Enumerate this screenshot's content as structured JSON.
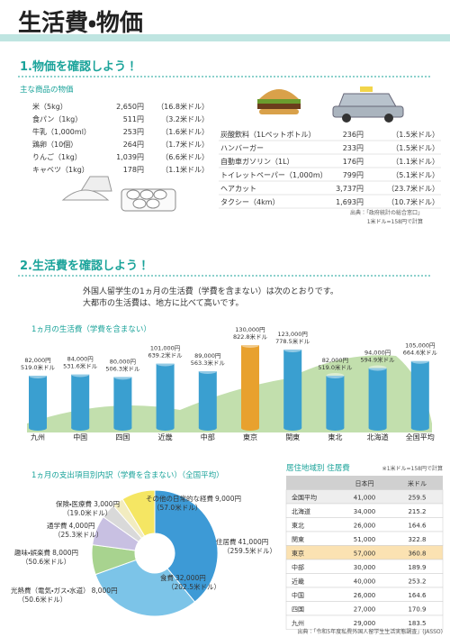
{
  "header": {
    "title": "生活費・物価"
  },
  "section1": {
    "title": "1.物価を確認しよう！",
    "subtitle": "主な商品の物価",
    "items_left": [
      [
        "米（5kg）",
        "2,650円",
        "（16.8米ドル）"
      ],
      [
        "食パン（1kg）",
        "511円",
        "（3.2米ドル）"
      ],
      [
        "牛乳（1,000ml）",
        "253円",
        "（1.6米ドル）"
      ],
      [
        "鶏卵（10個）",
        "264円",
        "（1.7米ドル）"
      ],
      [
        "りんご（1kg）",
        "1,039円",
        "（6.6米ドル）"
      ],
      [
        "キャベツ（1kg）",
        "178円",
        "（1.1米ドル）"
      ]
    ],
    "items_right": [
      [
        "炭酸飲料（1Lペットボトル）",
        "236円",
        "（1.5米ドル）"
      ],
      [
        "ハンバーガー",
        "233円",
        "（1.5米ドル）"
      ],
      [
        "自動車ガソリン（1L）",
        "176円",
        "（1.1米ドル）"
      ],
      [
        "トイレットペーパー（1,000m）",
        "799円",
        "（5.1米ドル）"
      ],
      [
        "ヘアカット",
        "3,737円",
        "（23.7米ドル）"
      ],
      [
        "タクシー（4km）",
        "1,693円",
        "（10.7米ドル）"
      ]
    ],
    "source": "出典：「政府統計の総合窓口」",
    "rate": "1米ドル=158円で計算"
  },
  "section2": {
    "title": "2.生活費を確認しよう！",
    "intro": [
      "外国人留学生の1ヵ月の生活費（学費を含まない）は次のとおりです。",
      "大都市の生活費は、地方に比べて高いです。"
    ]
  },
  "chart_data": [
    {
      "type": "bar",
      "title": "1ヵ月の生活費（学費を含まない）",
      "categories": [
        "九州",
        "中国",
        "四国",
        "近畿",
        "中部",
        "東京",
        "関東",
        "東北",
        "北海道",
        "全国平均"
      ],
      "values": [
        82000,
        84000,
        80000,
        101000,
        89000,
        130000,
        123000,
        82000,
        94000,
        105000
      ],
      "value_labels": [
        "82,000円",
        "84,000円",
        "80,000円",
        "101,000円",
        "89,000円",
        "130,000円",
        "123,000円",
        "82,000円",
        "94,000円",
        "105,000円"
      ],
      "usd_labels": [
        "519.0米ドル",
        "531.6米ドル",
        "506.3米ドル",
        "639.2米ドル",
        "563.3米ドル",
        "822.8米ドル",
        "778.5米ドル",
        "519.0米ドル",
        "594.9米ドル",
        "664.6米ドル"
      ],
      "colors": [
        "#3a9fd0",
        "#3a9fd0",
        "#3a9fd0",
        "#3a9fd0",
        "#3a9fd0",
        "#e8a12e",
        "#3a9fd0",
        "#3a9fd0",
        "#3a9fd0",
        "#3a9fd0"
      ]
    },
    {
      "type": "pie",
      "title": "1ヵ月の支出項目別内訳（学費を含まない）（全国平均）",
      "categories": [
        "住居費",
        "食費",
        "光熱費（電気・ガス・水道）",
        "趣味・娯楽費",
        "通学費",
        "保険・医療費",
        "その他の日常的な経費"
      ],
      "values": [
        41000,
        32000,
        8000,
        8000,
        4000,
        3000,
        9000
      ],
      "value_labels": [
        "41,000円",
        "32,000円",
        "8,000円",
        "8,000円",
        "4,000円",
        "3,000円",
        "9,000円"
      ],
      "usd_labels": [
        "（259.5米ドル）",
        "（202.5米ドル）",
        "（50.6米ドル）",
        "（50.6米ドル）",
        "（25.3米ドル）",
        "（19.0米ドル）",
        "（57.0米ドル）"
      ],
      "colors": [
        "#3d9ad6",
        "#7cc4e8",
        "#a8d38f",
        "#c8c0e2",
        "#d9d9d9",
        "#f2ecc0",
        "#f5e663"
      ]
    }
  ],
  "table": {
    "title": "居住地域別 住居費",
    "note": "※1米ドル=158円で計算",
    "columns": [
      "",
      "日本円",
      "米ドル"
    ],
    "rows": [
      [
        "全国平均",
        "41,000",
        "259.5"
      ],
      [
        "北海道",
        "34,000",
        "215.2"
      ],
      [
        "東北",
        "26,000",
        "164.6"
      ],
      [
        "関東",
        "51,000",
        "322.8"
      ],
      [
        "東京",
        "57,000",
        "360.8"
      ],
      [
        "中部",
        "30,000",
        "189.9"
      ],
      [
        "近畿",
        "40,000",
        "253.2"
      ],
      [
        "中国",
        "26,000",
        "164.6"
      ],
      [
        "四国",
        "27,000",
        "170.9"
      ],
      [
        "九州",
        "29,000",
        "183.5"
      ]
    ],
    "source": "出典：「令和5年度私費外国人留学生生活実態調査」(JASSO)"
  }
}
